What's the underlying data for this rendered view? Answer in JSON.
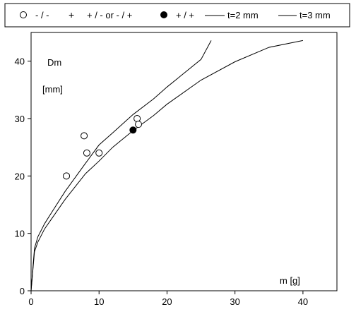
{
  "chart_data": {
    "type": "scatter",
    "title": "",
    "xlabel": "m  [g]",
    "ylabel_line1": "Dm",
    "ylabel_line2": "[mm]",
    "xlim": [
      0,
      45
    ],
    "ylim": [
      0,
      45
    ],
    "x_ticks": [
      0,
      10,
      20,
      30,
      40
    ],
    "y_ticks": [
      0,
      10,
      20,
      30,
      40
    ],
    "grid": false,
    "legend_position": "top",
    "legend": [
      {
        "label": "- / -",
        "marker": "open-circle"
      },
      {
        "label": "+ / - or - / +",
        "marker": "plus"
      },
      {
        "label": "+ / +",
        "marker": "filled-circle"
      },
      {
        "label": "t=2 mm",
        "marker": "line"
      },
      {
        "label": "t=3 mm",
        "marker": "line"
      }
    ],
    "series": [
      {
        "name": "- / -",
        "kind": "points",
        "marker": "open-circle",
        "points": [
          [
            5.2,
            20
          ],
          [
            7.8,
            27
          ],
          [
            8.2,
            24
          ],
          [
            10,
            24
          ],
          [
            15.6,
            30
          ],
          [
            15.8,
            29
          ]
        ]
      },
      {
        "name": "+ / +",
        "kind": "points",
        "marker": "filled-circle",
        "points": [
          [
            15,
            28
          ]
        ]
      },
      {
        "name": "t=2 mm",
        "kind": "line",
        "points": [
          [
            0,
            0
          ],
          [
            0.5,
            6.8
          ],
          [
            1,
            8.5
          ],
          [
            2,
            10.8
          ],
          [
            3,
            12.5
          ],
          [
            5,
            15.9
          ],
          [
            8,
            20.4
          ],
          [
            10,
            22.6
          ],
          [
            12,
            25
          ],
          [
            15,
            27.9
          ],
          [
            18,
            30.5
          ],
          [
            20,
            32.5
          ],
          [
            25,
            36.7
          ],
          [
            30,
            39.9
          ],
          [
            35,
            42.4
          ],
          [
            40,
            43.6
          ]
        ]
      },
      {
        "name": "t=3 mm",
        "kind": "line",
        "points": [
          [
            0,
            0
          ],
          [
            0.5,
            7.4
          ],
          [
            1,
            9.4
          ],
          [
            2,
            11.7
          ],
          [
            3,
            13.6
          ],
          [
            5,
            17.3
          ],
          [
            8,
            22.2
          ],
          [
            10,
            25.4
          ],
          [
            12,
            27.5
          ],
          [
            15,
            30.7
          ],
          [
            18,
            33.4
          ],
          [
            20,
            35.5
          ],
          [
            25,
            40.3
          ],
          [
            26.5,
            43.6
          ]
        ]
      }
    ]
  }
}
